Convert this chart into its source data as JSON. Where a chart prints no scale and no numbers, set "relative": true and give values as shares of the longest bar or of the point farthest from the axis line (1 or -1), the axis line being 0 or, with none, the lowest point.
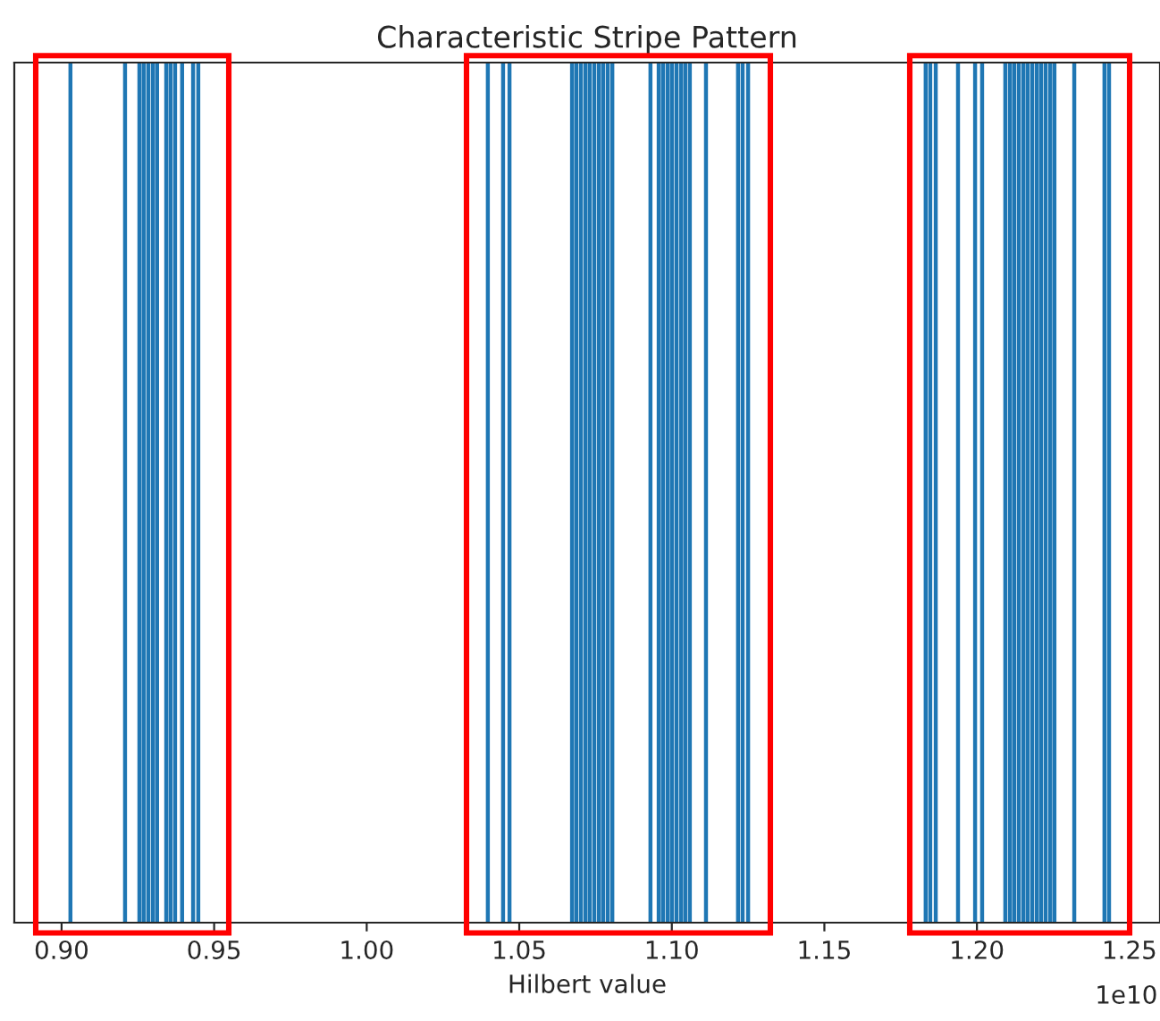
{
  "chart_data": {
    "type": "bar",
    "title": "Characteristic Stripe Pattern",
    "xlabel": "Hilbert value",
    "relative": true,
    "tick_labels": "x",
    "x": [
      0.9029,
      0.9208,
      0.9255,
      0.9269,
      0.9284,
      0.9299,
      0.9313,
      0.9343,
      0.9357,
      0.9372,
      0.9395,
      0.9431,
      0.9448,
      1.0397,
      1.0447,
      1.0468,
      1.0673,
      1.0687,
      1.0702,
      1.0717,
      1.0731,
      1.0746,
      1.0761,
      1.0775,
      1.079,
      1.0805,
      1.093,
      1.0957,
      1.0971,
      1.0986,
      1.1,
      1.1015,
      1.103,
      1.1044,
      1.1059,
      1.1112,
      1.1217,
      1.1232,
      1.125,
      1.1832,
      1.1847,
      1.1865,
      1.1938,
      1.1994,
      1.2017,
      1.2093,
      1.2108,
      1.2122,
      1.2137,
      1.2152,
      1.2166,
      1.2181,
      1.2196,
      1.221,
      1.2225,
      1.224,
      1.2254,
      1.2319,
      1.2418,
      1.2433
    ],
    "values": [
      1,
      1,
      1,
      1,
      1,
      1,
      1,
      1,
      1,
      1,
      1,
      1,
      1,
      1,
      1,
      1,
      1,
      1,
      1,
      1,
      1,
      1,
      1,
      1,
      1,
      1,
      1,
      1,
      1,
      1,
      1,
      1,
      1,
      1,
      1,
      1,
      1,
      1,
      1,
      1,
      1,
      1,
      1,
      1,
      1,
      1,
      1,
      1,
      1,
      1,
      1,
      1,
      1,
      1,
      1,
      1,
      1,
      1,
      1,
      1
    ],
    "color": "#1f77b4",
    "xlim": [
      0.8845,
      1.26
    ],
    "xticks": [
      {
        "value": 0.9,
        "label": "0.90"
      },
      {
        "value": 0.95,
        "label": "0.95"
      },
      {
        "value": 1.0,
        "label": "1.00"
      },
      {
        "value": 1.05,
        "label": "1.05"
      },
      {
        "value": 1.1,
        "label": "1.10"
      },
      {
        "value": 1.15,
        "label": "1.15"
      },
      {
        "value": 1.2,
        "label": "1.20"
      },
      {
        "value": 1.25,
        "label": "1.25"
      }
    ],
    "annotations": [
      "1e10"
    ]
  }
}
